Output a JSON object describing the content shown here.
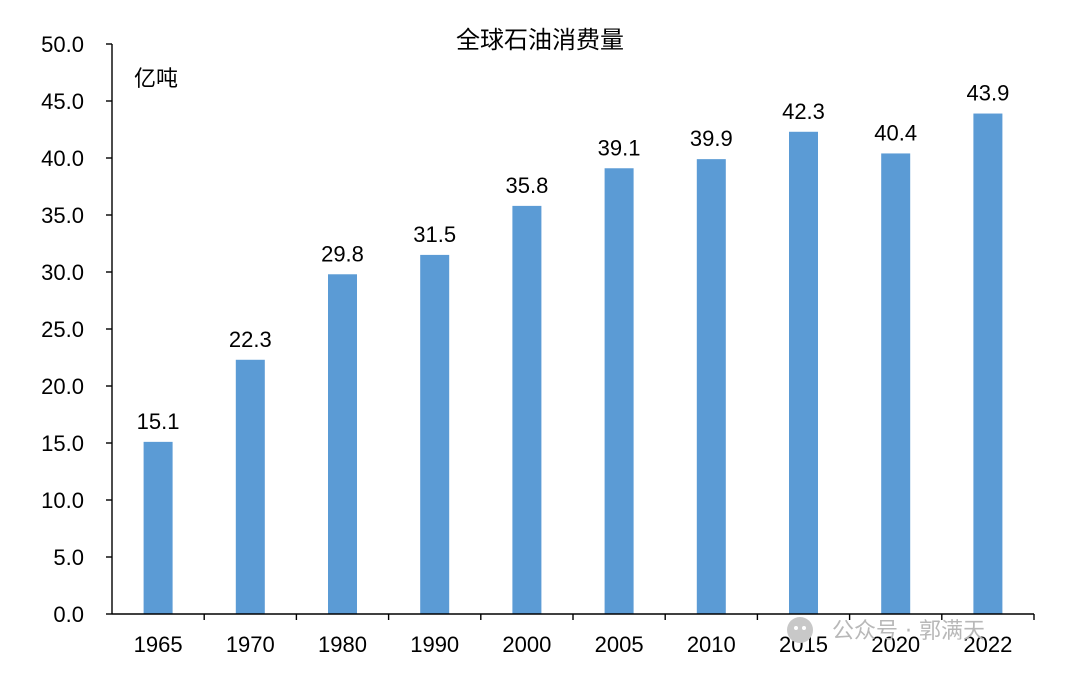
{
  "chart_data": {
    "type": "bar",
    "title": "全球石油消费量",
    "unit_label": "亿吨",
    "categories": [
      "1965",
      "1970",
      "1980",
      "1990",
      "2000",
      "2005",
      "2010",
      "2015",
      "2020",
      "2022"
    ],
    "values": [
      15.1,
      22.3,
      29.8,
      31.5,
      35.8,
      39.1,
      39.9,
      42.3,
      40.4,
      43.9
    ],
    "data_labels": [
      "15.1",
      "22.3",
      "29.8",
      "31.5",
      "35.8",
      "39.1",
      "39.9",
      "42.3",
      "40.4",
      "43.9"
    ],
    "y_ticks": [
      "0.0",
      "5.0",
      "10.0",
      "15.0",
      "20.0",
      "25.0",
      "30.0",
      "35.0",
      "40.0",
      "45.0",
      "50.0"
    ],
    "ylim": [
      0,
      50
    ],
    "grid": false,
    "legend": "none",
    "bar_color": "#5b9bd5"
  },
  "watermark": {
    "icon": "wechat-icon",
    "text": "公众号 · 郭满天"
  }
}
